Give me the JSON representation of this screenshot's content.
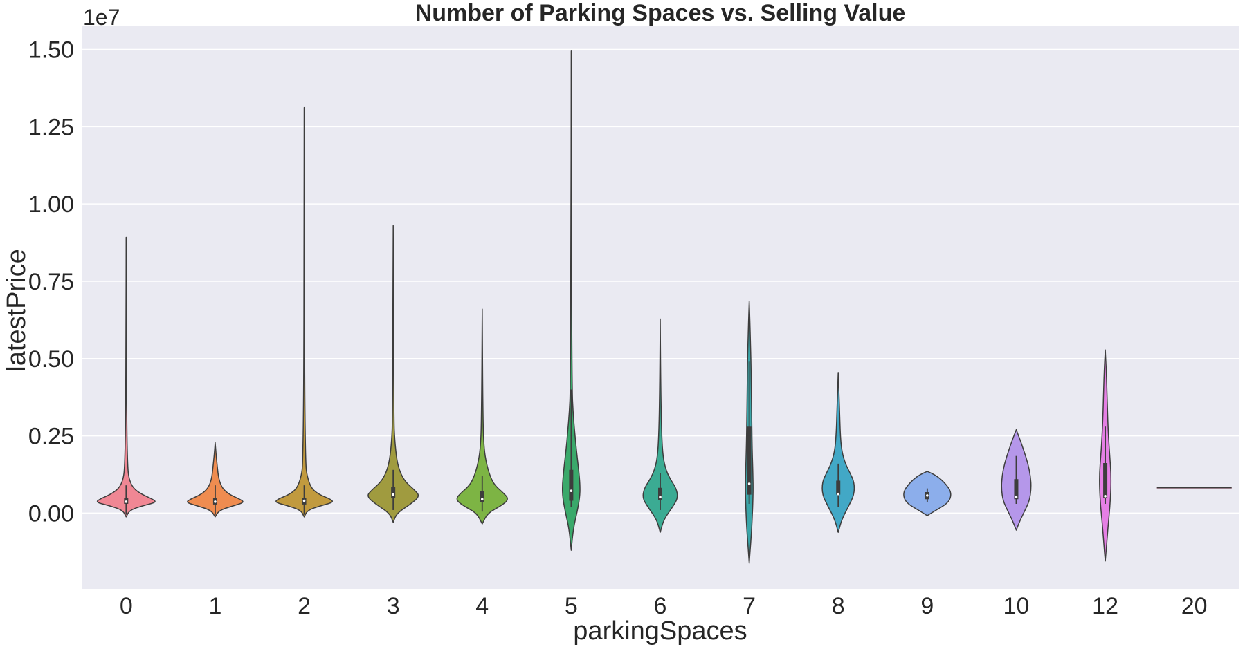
{
  "chart_data": {
    "type": "violin",
    "title": "Number of Parking Spaces vs. Selling Value",
    "xlabel": "parkingSpaces",
    "ylabel": "latestPrice",
    "y_offset_label": "1e7",
    "y_scale": 10000000,
    "ylim": [
      -0.245,
      1.575
    ],
    "yticks": [
      0.0,
      0.25,
      0.5,
      0.75,
      1.0,
      1.25,
      1.5
    ],
    "ytick_labels": [
      "0.00",
      "0.25",
      "0.50",
      "0.75",
      "1.00",
      "1.25",
      "1.50"
    ],
    "grid": true,
    "categories": [
      "0",
      "1",
      "2",
      "3",
      "4",
      "5",
      "6",
      "7",
      "8",
      "9",
      "10",
      "12",
      "20"
    ],
    "series": [
      {
        "category": "0",
        "color": "#f08794",
        "min": -0.012,
        "max": 0.892,
        "q1": 0.03,
        "median": 0.037,
        "q3": 0.05,
        "whisker_low": -0.005,
        "whisker_high": 0.09,
        "profile": [
          [
            -0.012,
            0.0
          ],
          [
            0.01,
            0.1
          ],
          [
            0.025,
            0.5
          ],
          [
            0.035,
            0.85
          ],
          [
            0.045,
            0.75
          ],
          [
            0.06,
            0.45
          ],
          [
            0.08,
            0.2
          ],
          [
            0.11,
            0.08
          ],
          [
            0.15,
            0.04
          ],
          [
            0.3,
            0.015
          ],
          [
            0.6,
            0.006
          ],
          [
            0.892,
            0.0
          ]
        ]
      },
      {
        "category": "1",
        "color": "#ef8c50",
        "min": -0.012,
        "max": 0.228,
        "q1": 0.028,
        "median": 0.037,
        "q3": 0.05,
        "whisker_low": -0.005,
        "whisker_high": 0.09,
        "profile": [
          [
            -0.012,
            0.0
          ],
          [
            0.01,
            0.12
          ],
          [
            0.025,
            0.55
          ],
          [
            0.035,
            0.82
          ],
          [
            0.045,
            0.7
          ],
          [
            0.06,
            0.4
          ],
          [
            0.08,
            0.2
          ],
          [
            0.11,
            0.1
          ],
          [
            0.15,
            0.06
          ],
          [
            0.19,
            0.025
          ],
          [
            0.228,
            0.0
          ]
        ]
      },
      {
        "category": "2",
        "color": "#c19a3e",
        "min": -0.012,
        "max": 1.312,
        "q1": 0.028,
        "median": 0.04,
        "q3": 0.05,
        "whisker_low": -0.005,
        "whisker_high": 0.09,
        "profile": [
          [
            -0.012,
            0.0
          ],
          [
            0.01,
            0.1
          ],
          [
            0.025,
            0.5
          ],
          [
            0.035,
            0.82
          ],
          [
            0.045,
            0.75
          ],
          [
            0.06,
            0.42
          ],
          [
            0.08,
            0.2
          ],
          [
            0.12,
            0.08
          ],
          [
            0.16,
            0.04
          ],
          [
            0.4,
            0.012
          ],
          [
            0.9,
            0.006
          ],
          [
            1.312,
            0.0
          ]
        ]
      },
      {
        "category": "3",
        "color": "#a09b3f",
        "min": -0.03,
        "max": 0.93,
        "q1": 0.05,
        "median": 0.06,
        "q3": 0.085,
        "whisker_low": 0.01,
        "whisker_high": 0.14,
        "profile": [
          [
            -0.03,
            0.0
          ],
          [
            0.0,
            0.1
          ],
          [
            0.03,
            0.5
          ],
          [
            0.055,
            0.75
          ],
          [
            0.075,
            0.6
          ],
          [
            0.1,
            0.35
          ],
          [
            0.13,
            0.2
          ],
          [
            0.17,
            0.1
          ],
          [
            0.24,
            0.04
          ],
          [
            0.3,
            0.02
          ],
          [
            0.6,
            0.008
          ],
          [
            0.93,
            0.0
          ]
        ]
      },
      {
        "category": "4",
        "color": "#7db444",
        "min": -0.035,
        "max": 0.66,
        "q1": 0.035,
        "median": 0.045,
        "q3": 0.072,
        "whisker_low": 0.005,
        "whisker_high": 0.12,
        "profile": [
          [
            -0.035,
            0.0
          ],
          [
            0.0,
            0.15
          ],
          [
            0.025,
            0.55
          ],
          [
            0.045,
            0.75
          ],
          [
            0.065,
            0.6
          ],
          [
            0.09,
            0.35
          ],
          [
            0.12,
            0.22
          ],
          [
            0.16,
            0.12
          ],
          [
            0.21,
            0.05
          ],
          [
            0.3,
            0.02
          ],
          [
            0.66,
            0.0
          ]
        ]
      },
      {
        "category": "5",
        "color": "#3aa96b",
        "min": -0.12,
        "max": 1.495,
        "q1": 0.04,
        "median": 0.072,
        "q3": 0.14,
        "whisker_low": 0.02,
        "whisker_high": 0.4,
        "profile": [
          [
            -0.12,
            0.0
          ],
          [
            -0.05,
            0.06
          ],
          [
            0.0,
            0.16
          ],
          [
            0.05,
            0.24
          ],
          [
            0.09,
            0.25
          ],
          [
            0.14,
            0.21
          ],
          [
            0.2,
            0.15
          ],
          [
            0.26,
            0.1
          ],
          [
            0.33,
            0.05
          ],
          [
            0.4,
            0.025
          ],
          [
            0.8,
            0.008
          ],
          [
            1.495,
            0.0
          ]
        ]
      },
      {
        "category": "6",
        "color": "#3bab93",
        "min": -0.062,
        "max": 0.628,
        "q1": 0.042,
        "median": 0.052,
        "q3": 0.082,
        "whisker_low": 0.01,
        "whisker_high": 0.13,
        "profile": [
          [
            -0.062,
            0.0
          ],
          [
            -0.02,
            0.1
          ],
          [
            0.02,
            0.35
          ],
          [
            0.05,
            0.5
          ],
          [
            0.08,
            0.45
          ],
          [
            0.11,
            0.28
          ],
          [
            0.14,
            0.16
          ],
          [
            0.18,
            0.08
          ],
          [
            0.25,
            0.04
          ],
          [
            0.4,
            0.015
          ],
          [
            0.628,
            0.0
          ]
        ]
      },
      {
        "category": "7",
        "color": "#3aa5a8",
        "min": -0.162,
        "max": 0.685,
        "q1": 0.06,
        "median": 0.095,
        "q3": 0.28,
        "whisker_low": 0.03,
        "whisker_high": 0.49,
        "profile": [
          [
            -0.162,
            0.0
          ],
          [
            -0.1,
            0.04
          ],
          [
            -0.03,
            0.08
          ],
          [
            0.03,
            0.1
          ],
          [
            0.08,
            0.11
          ],
          [
            0.14,
            0.1
          ],
          [
            0.22,
            0.08
          ],
          [
            0.3,
            0.07
          ],
          [
            0.38,
            0.06
          ],
          [
            0.48,
            0.05
          ],
          [
            0.55,
            0.035
          ],
          [
            0.62,
            0.02
          ],
          [
            0.685,
            0.0
          ]
        ]
      },
      {
        "category": "8",
        "color": "#42a8c6",
        "min": -0.062,
        "max": 0.455,
        "q1": 0.06,
        "median": 0.062,
        "q3": 0.105,
        "whisker_low": 0.02,
        "whisker_high": 0.16,
        "profile": [
          [
            -0.062,
            0.0
          ],
          [
            -0.02,
            0.1
          ],
          [
            0.02,
            0.28
          ],
          [
            0.06,
            0.45
          ],
          [
            0.1,
            0.45
          ],
          [
            0.13,
            0.33
          ],
          [
            0.16,
            0.2
          ],
          [
            0.2,
            0.1
          ],
          [
            0.25,
            0.06
          ],
          [
            0.32,
            0.04
          ],
          [
            0.455,
            0.0
          ]
        ]
      },
      {
        "category": "9",
        "color": "#8caeeb",
        "min": -0.008,
        "max": 0.135,
        "q1": 0.045,
        "median": 0.057,
        "q3": 0.068,
        "whisker_low": 0.035,
        "whisker_high": 0.08,
        "profile": [
          [
            -0.008,
            0.0
          ],
          [
            0.01,
            0.25
          ],
          [
            0.03,
            0.55
          ],
          [
            0.05,
            0.66
          ],
          [
            0.07,
            0.66
          ],
          [
            0.09,
            0.55
          ],
          [
            0.11,
            0.38
          ],
          [
            0.125,
            0.2
          ],
          [
            0.135,
            0.0
          ]
        ]
      },
      {
        "category": "10",
        "color": "#b597ea",
        "min": -0.055,
        "max": 0.27,
        "q1": 0.045,
        "median": 0.052,
        "q3": 0.11,
        "whisker_low": 0.03,
        "whisker_high": 0.185,
        "profile": [
          [
            -0.055,
            0.0
          ],
          [
            -0.02,
            0.12
          ],
          [
            0.01,
            0.25
          ],
          [
            0.04,
            0.37
          ],
          [
            0.08,
            0.42
          ],
          [
            0.12,
            0.4
          ],
          [
            0.16,
            0.33
          ],
          [
            0.2,
            0.22
          ],
          [
            0.24,
            0.1
          ],
          [
            0.27,
            0.0
          ]
        ]
      },
      {
        "category": "12",
        "color": "#e57fe4",
        "min": -0.155,
        "max": 0.528,
        "q1": 0.05,
        "median": 0.055,
        "q3": 0.162,
        "whisker_low": 0.03,
        "whisker_high": 0.28,
        "profile": [
          [
            -0.155,
            0.0
          ],
          [
            -0.1,
            0.04
          ],
          [
            -0.04,
            0.08
          ],
          [
            0.02,
            0.13
          ],
          [
            0.08,
            0.16
          ],
          [
            0.13,
            0.16
          ],
          [
            0.18,
            0.13
          ],
          [
            0.23,
            0.1
          ],
          [
            0.3,
            0.07
          ],
          [
            0.38,
            0.05
          ],
          [
            0.46,
            0.03
          ],
          [
            0.528,
            0.0
          ]
        ]
      },
      {
        "category": "20",
        "color": "#f28ab6",
        "min": 0.082,
        "max": 0.082,
        "q1": 0.082,
        "median": 0.082,
        "q3": 0.082,
        "whisker_low": 0.082,
        "whisker_high": 0.082,
        "profile": []
      }
    ]
  }
}
